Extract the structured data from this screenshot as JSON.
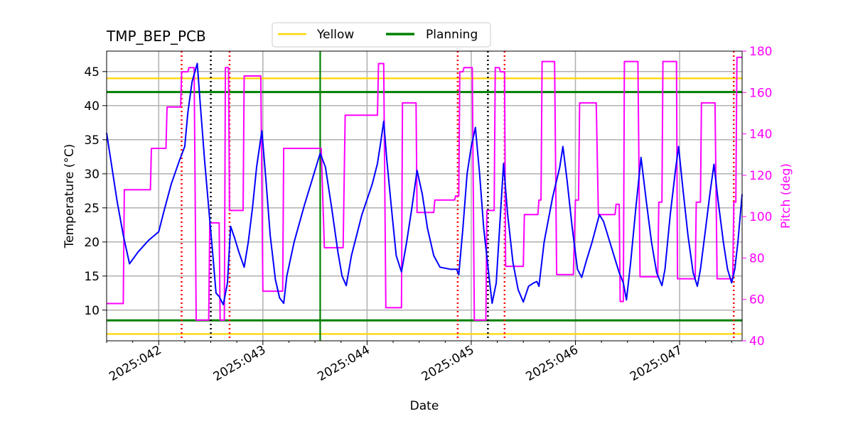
{
  "chart_data": {
    "type": "line",
    "title": "TMP_BEP_PCB",
    "xlabel": "Date",
    "ylabel": "Temperature ($^\\circ$C)",
    "ylabel_display": "Temperature (°C)",
    "y2label": "Pitch (deg)",
    "xlim": [
      41.5,
      47.6
    ],
    "ylim": [
      5.5,
      48.0
    ],
    "y2lim": [
      40,
      180
    ],
    "x_ticks": [
      42,
      43,
      44,
      45,
      46,
      47
    ],
    "x_tick_labels": [
      "2025:042",
      "2025:043",
      "2025:044",
      "2025:045",
      "2025:046",
      "2025:047"
    ],
    "y_ticks": [
      10,
      15,
      20,
      25,
      30,
      35,
      40,
      45
    ],
    "y_tick_labels": [
      "10",
      "15",
      "20",
      "25",
      "30",
      "35",
      "40",
      "45"
    ],
    "y2_ticks": [
      40,
      60,
      80,
      100,
      120,
      140,
      160,
      180
    ],
    "y2_tick_labels": [
      "40",
      "60",
      "80",
      "100",
      "120",
      "140",
      "160",
      "180"
    ],
    "grid": true,
    "legend": {
      "placement": "top-center",
      "entries": [
        {
          "label": "Yellow",
          "color": "#ffd700"
        },
        {
          "label": "Planning",
          "color": "#008000"
        }
      ]
    },
    "limit_lines": [
      {
        "name": "Yellow",
        "y": 44.0,
        "color": "#ffd700"
      },
      {
        "name": "Yellow",
        "y": 6.5,
        "color": "#ffd700"
      },
      {
        "name": "Planning",
        "y": 42.0,
        "color": "#008000"
      },
      {
        "name": "Planning",
        "y": 8.5,
        "color": "#008000"
      }
    ],
    "vertical_markers": [
      {
        "kind": "red-dotted",
        "x": 42.22,
        "color": "#ff0000"
      },
      {
        "kind": "red-dotted",
        "x": 42.68,
        "color": "#ff0000"
      },
      {
        "kind": "red-dotted",
        "x": 44.87,
        "color": "#ff0000"
      },
      {
        "kind": "red-dotted",
        "x": 45.32,
        "color": "#ff0000"
      },
      {
        "kind": "red-dotted",
        "x": 47.52,
        "color": "#ff0000"
      },
      {
        "kind": "black-dotted",
        "x": 42.5,
        "color": "#000000"
      },
      {
        "kind": "black-dotted",
        "x": 45.16,
        "color": "#000000"
      },
      {
        "kind": "green-solid",
        "x": 43.55,
        "color": "#008000"
      }
    ],
    "series": [
      {
        "name": "Temperature",
        "axis": "left",
        "color": "#0000ff",
        "points": [
          [
            41.5,
            36.0
          ],
          [
            41.54,
            32.0
          ],
          [
            41.6,
            26.0
          ],
          [
            41.66,
            21.0
          ],
          [
            41.72,
            16.8
          ],
          [
            41.8,
            18.5
          ],
          [
            41.9,
            20.2
          ],
          [
            42.0,
            21.5
          ],
          [
            42.05,
            24.5
          ],
          [
            42.12,
            28.5
          ],
          [
            42.2,
            32.0
          ],
          [
            42.25,
            34.0
          ],
          [
            42.28,
            39.0
          ],
          [
            42.32,
            43.5
          ],
          [
            42.37,
            46.2
          ],
          [
            42.4,
            40.0
          ],
          [
            42.44,
            32.0
          ],
          [
            42.48,
            25.0
          ],
          [
            42.52,
            18.0
          ],
          [
            42.55,
            12.5
          ],
          [
            42.58,
            12.0
          ],
          [
            42.62,
            10.8
          ],
          [
            42.66,
            14.0
          ],
          [
            42.69,
            22.3
          ],
          [
            42.73,
            20.5
          ],
          [
            42.77,
            18.5
          ],
          [
            42.82,
            16.3
          ],
          [
            42.86,
            20.0
          ],
          [
            42.9,
            25.0
          ],
          [
            42.94,
            31.0
          ],
          [
            42.99,
            36.3
          ],
          [
            43.03,
            29.0
          ],
          [
            43.07,
            21.0
          ],
          [
            43.12,
            14.5
          ],
          [
            43.16,
            11.8
          ],
          [
            43.2,
            11.0
          ],
          [
            43.23,
            15.0
          ],
          [
            43.3,
            20.0
          ],
          [
            43.4,
            25.5
          ],
          [
            43.48,
            29.5
          ],
          [
            43.55,
            33.0
          ],
          [
            43.6,
            31.0
          ],
          [
            43.66,
            25.0
          ],
          [
            43.72,
            18.5
          ],
          [
            43.76,
            15.0
          ],
          [
            43.8,
            13.6
          ],
          [
            43.85,
            18.0
          ],
          [
            43.95,
            24.0
          ],
          [
            44.05,
            28.5
          ],
          [
            44.1,
            31.5
          ],
          [
            44.13,
            34.5
          ],
          [
            44.16,
            37.7
          ],
          [
            44.19,
            32.0
          ],
          [
            44.24,
            24.0
          ],
          [
            44.28,
            18.0
          ],
          [
            44.33,
            15.6
          ],
          [
            44.38,
            20.0
          ],
          [
            44.43,
            25.0
          ],
          [
            44.48,
            30.5
          ],
          [
            44.53,
            27.0
          ],
          [
            44.58,
            22.0
          ],
          [
            44.64,
            18.0
          ],
          [
            44.7,
            16.3
          ],
          [
            44.8,
            16.0
          ],
          [
            44.86,
            16.0
          ],
          [
            44.88,
            15.2
          ],
          [
            44.92,
            22.0
          ],
          [
            44.96,
            30.0
          ],
          [
            45.0,
            34.0
          ],
          [
            45.04,
            36.8
          ],
          [
            45.08,
            30.0
          ],
          [
            45.12,
            22.0
          ],
          [
            45.17,
            15.0
          ],
          [
            45.2,
            11.0
          ],
          [
            45.24,
            14.0
          ],
          [
            45.28,
            24.0
          ],
          [
            45.31,
            31.5
          ],
          [
            45.35,
            24.0
          ],
          [
            45.4,
            17.0
          ],
          [
            45.45,
            13.0
          ],
          [
            45.5,
            11.2
          ],
          [
            45.55,
            13.5
          ],
          [
            45.6,
            14.0
          ],
          [
            45.63,
            14.2
          ],
          [
            45.65,
            13.5
          ],
          [
            45.7,
            20.0
          ],
          [
            45.78,
            26.5
          ],
          [
            45.85,
            31.0
          ],
          [
            45.88,
            34.0
          ],
          [
            45.92,
            29.0
          ],
          [
            45.97,
            22.0
          ],
          [
            46.02,
            16.0
          ],
          [
            46.06,
            14.8
          ],
          [
            46.1,
            17.0
          ],
          [
            46.16,
            20.0
          ],
          [
            46.23,
            24.0
          ],
          [
            46.27,
            23.0
          ],
          [
            46.32,
            20.5
          ],
          [
            46.38,
            17.5
          ],
          [
            46.42,
            15.5
          ],
          [
            46.46,
            14.0
          ],
          [
            46.49,
            11.5
          ],
          [
            46.53,
            17.0
          ],
          [
            46.58,
            25.0
          ],
          [
            46.63,
            32.4
          ],
          [
            46.68,
            26.0
          ],
          [
            46.73,
            20.0
          ],
          [
            46.78,
            15.5
          ],
          [
            46.83,
            13.6
          ],
          [
            46.86,
            16.0
          ],
          [
            46.91,
            24.0
          ],
          [
            46.96,
            30.5
          ],
          [
            46.99,
            34.0
          ],
          [
            47.03,
            28.0
          ],
          [
            47.08,
            21.0
          ],
          [
            47.13,
            15.5
          ],
          [
            47.17,
            13.5
          ],
          [
            47.2,
            16.0
          ],
          [
            47.25,
            22.0
          ],
          [
            47.29,
            27.0
          ],
          [
            47.33,
            31.4
          ],
          [
            47.37,
            26.0
          ],
          [
            47.42,
            20.0
          ],
          [
            47.46,
            16.0
          ],
          [
            47.5,
            14.0
          ],
          [
            47.53,
            16.0
          ],
          [
            47.56,
            20.0
          ],
          [
            47.6,
            27.0
          ]
        ]
      },
      {
        "name": "Pitch",
        "axis": "right",
        "color": "#ff00ff",
        "points": [
          [
            41.5,
            58
          ],
          [
            41.66,
            58
          ],
          [
            41.67,
            113
          ],
          [
            41.92,
            113
          ],
          [
            41.93,
            133
          ],
          [
            42.07,
            133
          ],
          [
            42.08,
            153
          ],
          [
            42.21,
            153
          ],
          [
            42.22,
            170
          ],
          [
            42.28,
            170
          ],
          [
            42.29,
            172
          ],
          [
            42.34,
            172
          ],
          [
            42.36,
            50
          ],
          [
            42.48,
            50
          ],
          [
            42.49,
            97
          ],
          [
            42.58,
            97
          ],
          [
            42.59,
            50
          ],
          [
            42.63,
            50
          ],
          [
            42.64,
            172
          ],
          [
            42.67,
            172
          ],
          [
            42.68,
            103
          ],
          [
            42.81,
            103
          ],
          [
            42.82,
            168
          ],
          [
            42.98,
            168
          ],
          [
            43.0,
            64
          ],
          [
            43.19,
            64
          ],
          [
            43.2,
            133
          ],
          [
            43.56,
            133
          ],
          [
            43.59,
            85
          ],
          [
            43.77,
            85
          ],
          [
            43.79,
            149
          ],
          [
            44.1,
            149
          ],
          [
            44.11,
            174
          ],
          [
            44.16,
            174
          ],
          [
            44.18,
            56
          ],
          [
            44.33,
            56
          ],
          [
            44.34,
            155
          ],
          [
            44.47,
            155
          ],
          [
            44.48,
            102
          ],
          [
            44.64,
            102
          ],
          [
            44.65,
            108
          ],
          [
            44.84,
            108
          ],
          [
            44.85,
            110
          ],
          [
            44.88,
            110
          ],
          [
            44.89,
            170
          ],
          [
            44.92,
            170
          ],
          [
            44.93,
            172
          ],
          [
            45.01,
            172
          ],
          [
            45.03,
            50
          ],
          [
            45.14,
            50
          ],
          [
            45.15,
            103
          ],
          [
            45.22,
            103
          ],
          [
            45.23,
            172
          ],
          [
            45.27,
            172
          ],
          [
            45.28,
            170
          ],
          [
            45.32,
            170
          ],
          [
            45.33,
            76
          ],
          [
            45.5,
            76
          ],
          [
            45.51,
            101
          ],
          [
            45.64,
            101
          ],
          [
            45.65,
            108
          ],
          [
            45.67,
            108
          ],
          [
            45.68,
            175
          ],
          [
            45.8,
            175
          ],
          [
            45.82,
            72
          ],
          [
            45.98,
            72
          ],
          [
            46.0,
            108
          ],
          [
            46.03,
            108
          ],
          [
            46.04,
            155
          ],
          [
            46.2,
            155
          ],
          [
            46.22,
            101
          ],
          [
            46.38,
            101
          ],
          [
            46.39,
            106
          ],
          [
            46.42,
            106
          ],
          [
            46.43,
            59
          ],
          [
            46.46,
            59
          ],
          [
            46.47,
            175
          ],
          [
            46.6,
            175
          ],
          [
            46.62,
            71
          ],
          [
            46.79,
            71
          ],
          [
            46.8,
            107
          ],
          [
            46.83,
            107
          ],
          [
            46.84,
            175
          ],
          [
            46.97,
            175
          ],
          [
            46.98,
            70
          ],
          [
            47.15,
            70
          ],
          [
            47.16,
            107
          ],
          [
            47.2,
            107
          ],
          [
            47.21,
            155
          ],
          [
            47.34,
            155
          ],
          [
            47.36,
            70
          ],
          [
            47.51,
            70
          ],
          [
            47.52,
            107
          ],
          [
            47.54,
            107
          ],
          [
            47.55,
            177
          ],
          [
            47.6,
            177
          ]
        ]
      }
    ]
  }
}
